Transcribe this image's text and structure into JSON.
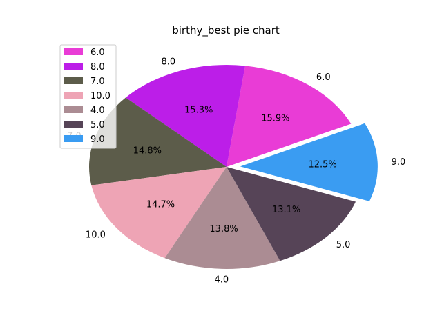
{
  "chart_data": {
    "type": "pie",
    "title": "birthy_best pie chart",
    "legend_placement": "upper-left",
    "start_angle_deg": 25,
    "explode_index": 6,
    "slices": [
      {
        "label": "6.0",
        "value": 15.9,
        "pct_label": "15.9%",
        "color": "#e93cd6"
      },
      {
        "label": "8.0",
        "value": 15.3,
        "pct_label": "15.3%",
        "color": "#bc1ee8"
      },
      {
        "label": "7.0",
        "value": 14.8,
        "pct_label": "14.8%",
        "color": "#5c5c4a"
      },
      {
        "label": "10.0",
        "value": 14.7,
        "pct_label": "14.7%",
        "color": "#eea4b5"
      },
      {
        "label": "4.0",
        "value": 13.8,
        "pct_label": "13.8%",
        "color": "#ab8c93"
      },
      {
        "label": "5.0",
        "value": 13.1,
        "pct_label": "13.1%",
        "color": "#564457"
      },
      {
        "label": "9.0",
        "value": 12.5,
        "pct_label": "12.5%",
        "color": "#3a9cf2"
      }
    ]
  }
}
